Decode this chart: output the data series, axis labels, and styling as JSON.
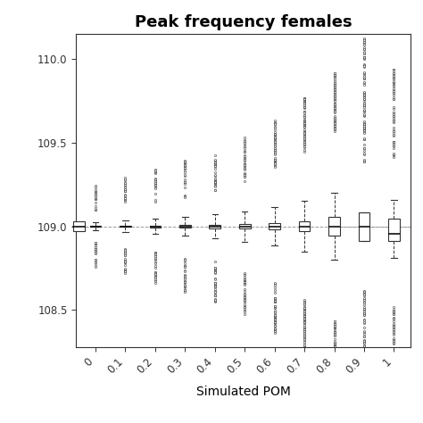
{
  "title": "Peak frequency females",
  "xlabel": "Simulated POM",
  "ylabel": "",
  "pom_labels": [
    "0",
    "0.1",
    "0.2",
    "0.3",
    "0.4",
    "0.5",
    "0.6",
    "0.7",
    "0.8",
    "0.9",
    "1"
  ],
  "ylim": [
    108.28,
    110.15
  ],
  "yticks": [
    108.5,
    109.0,
    109.5,
    110.0
  ],
  "ytick_labels": [
    "108.5",
    "109.0",
    "109.5",
    "110.0"
  ],
  "ref_line_y": 109.0,
  "median_base": 109.0,
  "q1_offsets": [
    0.003,
    0.004,
    0.005,
    0.007,
    0.01,
    0.013,
    0.018,
    0.03,
    0.055,
    0.085,
    0.085
  ],
  "q3_offsets": [
    0.003,
    0.004,
    0.005,
    0.007,
    0.01,
    0.013,
    0.018,
    0.03,
    0.055,
    0.085,
    0.045
  ],
  "median_offsets": [
    0.0,
    0.0,
    0.0,
    0.0,
    0.0,
    0.0,
    0.0,
    0.0,
    0.0,
    0.0,
    -0.045
  ],
  "lw_offsets": [
    0.025,
    0.035,
    0.045,
    0.055,
    0.07,
    0.09,
    0.115,
    0.15,
    0.2,
    0.0,
    0.19
  ],
  "uw_offsets": [
    0.025,
    0.035,
    0.045,
    0.055,
    0.07,
    0.09,
    0.115,
    0.15,
    0.2,
    0.0,
    0.16
  ],
  "out_low_min": [
    0.07,
    0.09,
    0.1,
    0.12,
    0.14,
    0.18,
    0.22,
    0.28,
    0.36,
    0.3,
    0.28
  ],
  "out_low_max": [
    0.22,
    0.26,
    0.3,
    0.34,
    0.38,
    0.44,
    0.52,
    0.62,
    0.72,
    0.72,
    0.6
  ],
  "out_high_min": [
    0.07,
    0.09,
    0.1,
    0.12,
    0.14,
    0.18,
    0.22,
    0.28,
    0.36,
    0.3,
    0.24
  ],
  "out_high_max": [
    0.22,
    0.26,
    0.3,
    0.34,
    0.38,
    0.44,
    0.52,
    0.62,
    0.72,
    1.1,
    0.78
  ],
  "n_out_low": [
    20,
    22,
    25,
    28,
    32,
    38,
    50,
    65,
    80,
    55,
    45
  ],
  "n_out_high": [
    18,
    20,
    22,
    25,
    30,
    35,
    48,
    60,
    75,
    90,
    55
  ],
  "no_whisker": [
    false,
    false,
    false,
    false,
    false,
    false,
    false,
    false,
    false,
    true,
    false
  ],
  "background_color": "#ffffff",
  "box_color": "white",
  "box_edge_color": "#333333",
  "median_color": "#111111",
  "whisker_color": "#333333",
  "outlier_color": "white",
  "outlier_edge_color": "#222222",
  "ref_line_color": "#999999",
  "title_fontsize": 13,
  "label_fontsize": 10,
  "tick_fontsize": 8.5,
  "box_width": 0.038,
  "figsize": [
    4.74,
    4.74
  ],
  "dpi": 100
}
